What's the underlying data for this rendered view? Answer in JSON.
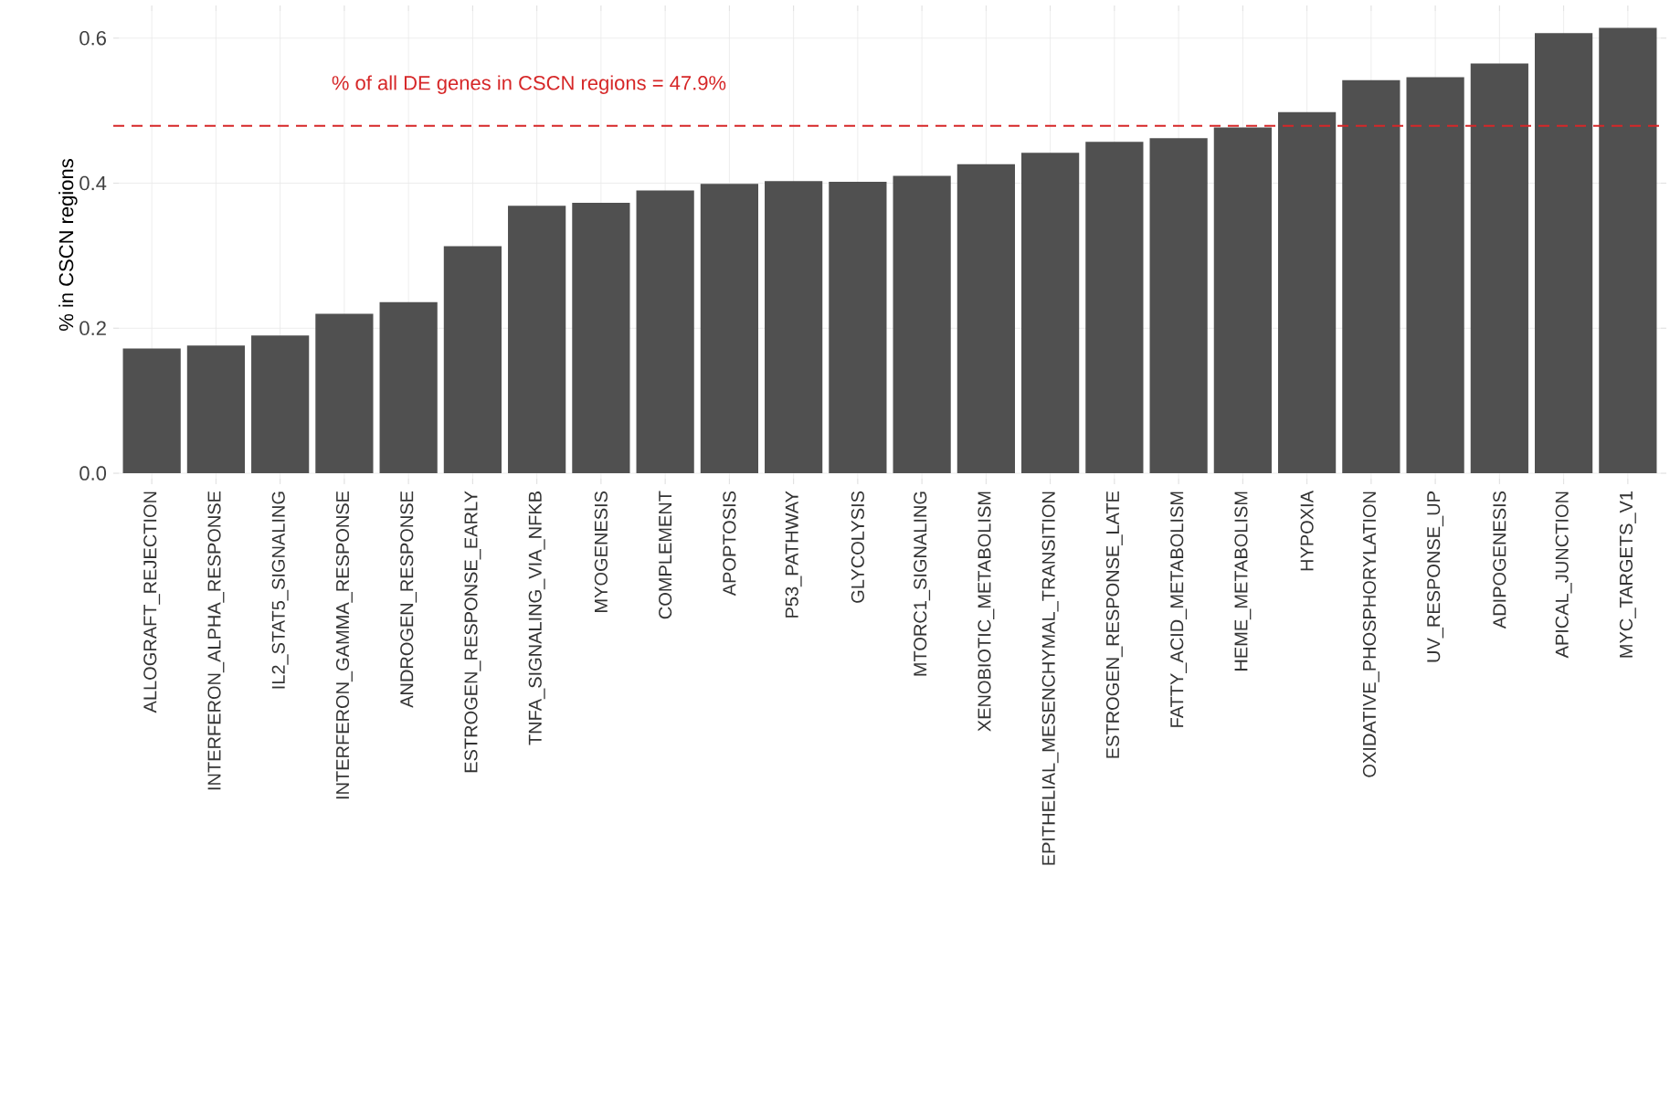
{
  "chart_data": {
    "type": "bar",
    "ylabel": "% in CSCN regions",
    "categories": [
      "ALLOGRAFT_REJECTION",
      "INTERFERON_ALPHA_RESPONSE",
      "IL2_STAT5_SIGNALING",
      "INTERFERON_GAMMA_RESPONSE",
      "ANDROGEN_RESPONSE",
      "ESTROGEN_RESPONSE_EARLY",
      "TNFA_SIGNALING_VIA_NFKB",
      "MYOGENESIS",
      "COMPLEMENT",
      "APOPTOSIS",
      "P53_PATHWAY",
      "GLYCOLYSIS",
      "MTORC1_SIGNALING",
      "XENOBIOTIC_METABOLISM",
      "EPITHELIAL_MESENCHYMAL_TRANSITION",
      "ESTROGEN_RESPONSE_LATE",
      "FATTY_ACID_METABOLISM",
      "HEME_METABOLISM",
      "HYPOXIA",
      "OXIDATIVE_PHOSPHORYLATION",
      "UV_RESPONSE_UP",
      "ADIPOGENESIS",
      "APICAL_JUNCTION",
      "MYC_TARGETS_V1"
    ],
    "values": [
      0.172,
      0.176,
      0.19,
      0.22,
      0.236,
      0.313,
      0.369,
      0.373,
      0.39,
      0.399,
      0.403,
      0.402,
      0.41,
      0.426,
      0.442,
      0.457,
      0.462,
      0.477,
      0.498,
      0.542,
      0.546,
      0.565,
      0.607,
      0.614
    ],
    "color": "#505050",
    "ylim": [
      -0.015,
      0.645
    ],
    "yticks": [
      {
        "value": 0,
        "label": "0.0"
      },
      0.2,
      0.4,
      0.6
    ],
    "grid": true,
    "ref_lines": [
      {
        "axis": "y",
        "value": 0.479,
        "label": "% of all DE genes in CSCN regions = 47.9%",
        "color": "#d62728",
        "line_style": "dashed"
      }
    ]
  }
}
